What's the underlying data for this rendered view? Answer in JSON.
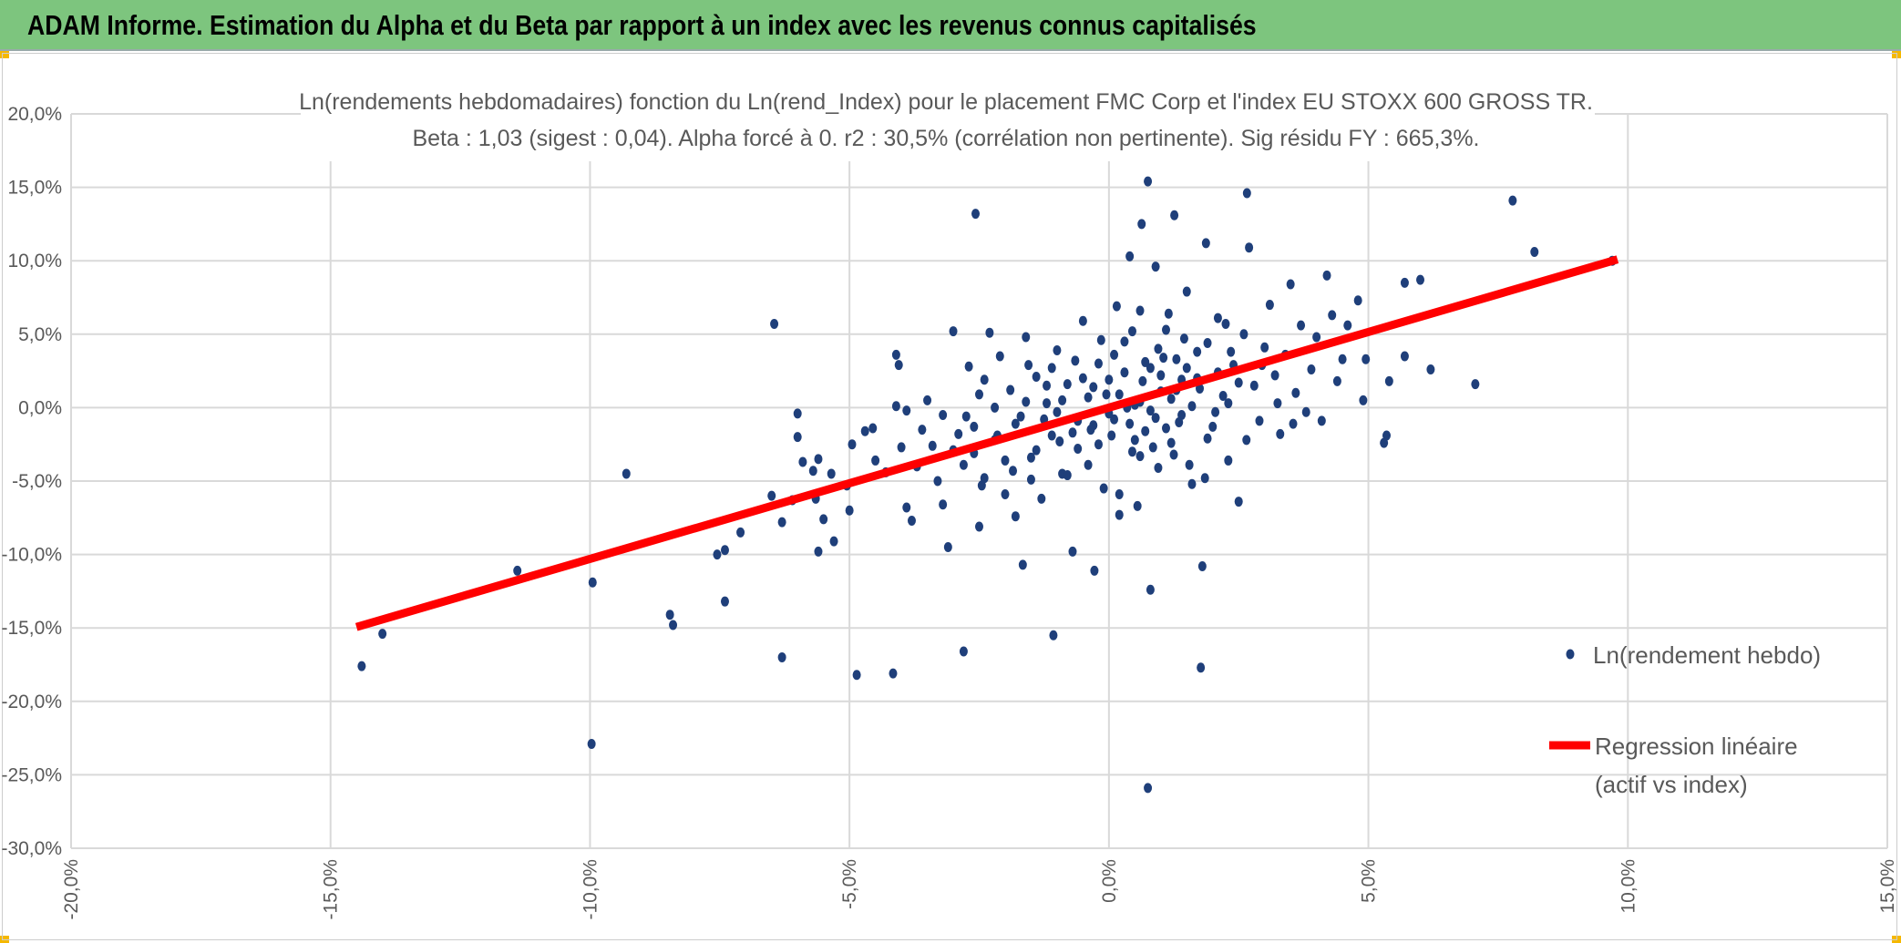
{
  "header": {
    "title": "ADAM Informe. Estimation du Alpha et du Beta par rapport à un index avec les revenus connus capitalisés"
  },
  "colors": {
    "header_bg": "#7dc57e",
    "points": "#1f3f7a",
    "regression": "#ff0000",
    "grid": "#d9d9d9"
  },
  "chart_data": {
    "type": "scatter",
    "title": "Ln(rendements hebdomadaires) fonction du Ln(rend_Index) pour le placement FMC Corp et l'index EU STOXX 600 GROSS TR.",
    "subtitle": "Beta : 1,03 (sigest : 0,04). Alpha forcé à 0. r2 : 30,5% (corrélation non pertinente). Sig résidu FY : 665,3%.",
    "xlabel": "",
    "ylabel": "",
    "xlim": [
      -20,
      15
    ],
    "ylim": [
      -30,
      20
    ],
    "x_ticks": [
      -20,
      -15,
      -10,
      -5,
      0,
      5,
      10,
      15
    ],
    "x_tick_labels": [
      "-20,0%",
      "-15,0%",
      "-10,0%",
      "-5,0%",
      "0,0%",
      "5,0%",
      "10,0%",
      "15,0%"
    ],
    "y_ticks": [
      20,
      15,
      10,
      5,
      0,
      -5,
      -10,
      -15,
      -20,
      -25,
      -30
    ],
    "y_tick_labels": [
      "20,0%",
      "15,0%",
      "10,0%",
      "5,0%",
      "0,0%",
      "-5,0%",
      "-10,0%",
      "-15,0%",
      "-20,0%",
      "-25,0%",
      "-30,0%"
    ],
    "grid": true,
    "legend_position": "right",
    "series": [
      {
        "name": "Ln(rendement hebdo)",
        "kind": "scatter",
        "points": [
          [
            -14.4,
            -17.6
          ],
          [
            -14.0,
            -15.4
          ],
          [
            -11.4,
            -11.1
          ],
          [
            -9.95,
            -11.9
          ],
          [
            -9.97,
            -22.9
          ],
          [
            -9.3,
            -4.5
          ],
          [
            -8.46,
            -14.1
          ],
          [
            -8.4,
            -14.8
          ],
          [
            -7.4,
            -13.2
          ],
          [
            -7.55,
            -10.0
          ],
          [
            -7.4,
            -9.7
          ],
          [
            -7.1,
            -8.5
          ],
          [
            -6.45,
            5.7
          ],
          [
            -6.3,
            -17.0
          ],
          [
            -6.0,
            -0.4
          ],
          [
            -6.0,
            -2.0
          ],
          [
            -6.5,
            -6.0
          ],
          [
            -6.1,
            -6.3
          ],
          [
            -6.3,
            -7.8
          ],
          [
            -5.9,
            -3.7
          ],
          [
            -5.7,
            -4.3
          ],
          [
            -5.6,
            -3.5
          ],
          [
            -5.35,
            -4.5
          ],
          [
            -5.65,
            -6.2
          ],
          [
            -5.5,
            -7.6
          ],
          [
            -5.6,
            -9.8
          ],
          [
            -5.3,
            -9.1
          ],
          [
            -5.05,
            -5.3
          ],
          [
            -5.0,
            -7.0
          ],
          [
            -4.95,
            -2.5
          ],
          [
            -4.86,
            -18.2
          ],
          [
            -4.7,
            -1.6
          ],
          [
            -4.55,
            -1.4
          ],
          [
            -4.5,
            -3.6
          ],
          [
            -4.3,
            -4.4
          ],
          [
            -4.16,
            -18.1
          ],
          [
            -4.1,
            3.6
          ],
          [
            -4.05,
            2.9
          ],
          [
            -4.1,
            0.1
          ],
          [
            -3.9,
            -0.2
          ],
          [
            -4.0,
            -2.7
          ],
          [
            -3.9,
            -6.8
          ],
          [
            -3.8,
            -7.7
          ],
          [
            -3.7,
            -4.0
          ],
          [
            -3.6,
            -1.5
          ],
          [
            -3.5,
            0.5
          ],
          [
            -3.4,
            -2.6
          ],
          [
            -3.3,
            -5.0
          ],
          [
            -3.2,
            -6.6
          ],
          [
            -3.1,
            -9.5
          ],
          [
            -3.0,
            5.2
          ],
          [
            -2.9,
            -1.8
          ],
          [
            -2.8,
            -16.6
          ],
          [
            -2.7,
            2.8
          ],
          [
            -2.6,
            -3.1
          ],
          [
            -2.57,
            13.2
          ],
          [
            -2.5,
            -8.1
          ],
          [
            -2.5,
            0.9
          ],
          [
            -2.4,
            -4.8
          ],
          [
            -2.3,
            5.1
          ],
          [
            -2.2,
            -2.2
          ],
          [
            -2.1,
            3.5
          ],
          [
            -2.0,
            -5.9
          ],
          [
            -1.9,
            1.2
          ],
          [
            -1.8,
            -7.4
          ],
          [
            -1.7,
            -0.6
          ],
          [
            -1.66,
            -10.7
          ],
          [
            -1.6,
            4.8
          ],
          [
            -1.5,
            -3.4
          ],
          [
            -1.4,
            2.1
          ],
          [
            -1.3,
            -6.2
          ],
          [
            -1.2,
            0.3
          ],
          [
            -1.1,
            -1.9
          ],
          [
            -1.07,
            -15.5
          ],
          [
            -1.0,
            3.9
          ],
          [
            -0.9,
            -4.5
          ],
          [
            -0.8,
            1.6
          ],
          [
            -0.7,
            -9.8
          ],
          [
            -0.6,
            -2.8
          ],
          [
            -0.5,
            5.9
          ],
          [
            -0.4,
            0.7
          ],
          [
            -0.3,
            -1.2
          ],
          [
            -0.28,
            -11.1
          ],
          [
            -0.2,
            3.0
          ],
          [
            -0.1,
            -5.5
          ],
          [
            0.0,
            1.9
          ],
          [
            0.1,
            -0.8
          ],
          [
            0.2,
            -7.3
          ],
          [
            0.3,
            4.5
          ],
          [
            0.4,
            10.3
          ],
          [
            0.45,
            -3.0
          ],
          [
            0.5,
            0.2
          ],
          [
            0.6,
            6.6
          ],
          [
            0.63,
            12.5
          ],
          [
            0.7,
            -1.6
          ],
          [
            0.75,
            15.4
          ],
          [
            0.75,
            -25.9
          ],
          [
            0.8,
            -12.4
          ],
          [
            0.8,
            2.7
          ],
          [
            0.9,
            9.6
          ],
          [
            0.95,
            -4.1
          ],
          [
            1.0,
            1.1
          ],
          [
            1.1,
            5.3
          ],
          [
            1.2,
            -2.4
          ],
          [
            1.26,
            13.1
          ],
          [
            1.3,
            3.3
          ],
          [
            1.4,
            -0.5
          ],
          [
            1.5,
            7.9
          ],
          [
            1.6,
            -5.2
          ],
          [
            1.7,
            2.0
          ],
          [
            1.77,
            -17.7
          ],
          [
            1.8,
            -10.8
          ],
          [
            1.87,
            11.2
          ],
          [
            1.9,
            4.4
          ],
          [
            2.0,
            -1.3
          ],
          [
            2.1,
            6.1
          ],
          [
            2.2,
            0.8
          ],
          [
            2.3,
            -3.6
          ],
          [
            2.4,
            2.9
          ],
          [
            2.5,
            -6.4
          ],
          [
            2.6,
            5.0
          ],
          [
            2.66,
            14.6
          ],
          [
            2.7,
            10.9
          ],
          [
            2.8,
            1.5
          ],
          [
            2.9,
            -0.9
          ],
          [
            3.0,
            4.1
          ],
          [
            3.1,
            7.0
          ],
          [
            3.2,
            2.2
          ],
          [
            3.3,
            -1.8
          ],
          [
            3.4,
            3.6
          ],
          [
            3.5,
            8.4
          ],
          [
            3.6,
            1.0
          ],
          [
            3.7,
            5.6
          ],
          [
            3.8,
            -0.3
          ],
          [
            3.9,
            2.6
          ],
          [
            4.0,
            4.8
          ],
          [
            4.1,
            -0.9
          ],
          [
            4.2,
            9.0
          ],
          [
            4.3,
            6.3
          ],
          [
            4.4,
            1.8
          ],
          [
            4.5,
            3.3
          ],
          [
            4.6,
            5.6
          ],
          [
            4.8,
            7.3
          ],
          [
            4.9,
            0.5
          ],
          [
            4.95,
            3.3
          ],
          [
            5.3,
            -2.4
          ],
          [
            5.35,
            -1.9
          ],
          [
            5.4,
            1.8
          ],
          [
            5.7,
            3.5
          ],
          [
            5.7,
            8.5
          ],
          [
            6.0,
            8.7
          ],
          [
            6.2,
            2.6
          ],
          [
            7.06,
            1.6
          ],
          [
            7.78,
            14.1
          ],
          [
            8.2,
            10.6
          ],
          [
            9.7,
            10.0
          ],
          [
            -0.9,
            0.5
          ],
          [
            -0.6,
            -0.9
          ],
          [
            -0.3,
            1.4
          ],
          [
            0.0,
            -0.4
          ],
          [
            0.2,
            0.9
          ],
          [
            0.4,
            -1.1
          ],
          [
            0.6,
            0.4
          ],
          [
            0.8,
            -0.2
          ],
          [
            1.0,
            2.2
          ],
          [
            1.2,
            0.6
          ],
          [
            1.4,
            1.9
          ],
          [
            1.6,
            0.1
          ],
          [
            0.3,
            2.4
          ],
          [
            0.5,
            -2.2
          ],
          [
            0.7,
            3.1
          ],
          [
            0.9,
            -0.7
          ],
          [
            1.1,
            -1.4
          ],
          [
            1.3,
            1.2
          ],
          [
            1.5,
            2.7
          ],
          [
            -0.2,
            -2.5
          ],
          [
            -0.5,
            2.0
          ],
          [
            -0.7,
            -1.7
          ],
          [
            -1.0,
            -0.3
          ],
          [
            -1.2,
            1.5
          ],
          [
            -1.4,
            -2.9
          ],
          [
            -1.6,
            0.4
          ],
          [
            -1.8,
            -1.1
          ],
          [
            -2.0,
            -3.6
          ],
          [
            -2.2,
            0.0
          ],
          [
            -0.4,
            -3.9
          ],
          [
            0.1,
            3.6
          ],
          [
            0.6,
            -3.3
          ],
          [
            1.7,
            3.8
          ],
          [
            1.9,
            -2.1
          ],
          [
            2.1,
            2.4
          ],
          [
            2.3,
            0.3
          ],
          [
            2.5,
            1.7
          ],
          [
            0.2,
            -5.9
          ],
          [
            0.45,
            5.2
          ],
          [
            0.95,
            4.0
          ],
          [
            1.25,
            -3.2
          ],
          [
            -0.15,
            4.6
          ],
          [
            -0.8,
            -4.6
          ],
          [
            -1.1,
            2.7
          ],
          [
            -1.5,
            -4.9
          ],
          [
            -2.6,
            -1.3
          ],
          [
            -2.8,
            -3.9
          ],
          [
            -3.0,
            -2.9
          ],
          [
            -3.2,
            -0.5
          ],
          [
            -2.4,
            1.9
          ],
          [
            0.05,
            -1.9
          ],
          [
            0.35,
            0.0
          ],
          [
            0.65,
            1.8
          ],
          [
            0.85,
            -2.7
          ],
          [
            1.05,
            3.4
          ],
          [
            1.35,
            -1.0
          ],
          [
            1.55,
            -3.9
          ],
          [
            1.75,
            1.3
          ],
          [
            2.05,
            -0.3
          ],
          [
            2.35,
            3.8
          ],
          [
            2.65,
            -2.2
          ],
          [
            2.95,
            2.9
          ],
          [
            3.25,
            0.3
          ],
          [
            3.55,
            -1.1
          ],
          [
            -0.05,
            0.9
          ],
          [
            -0.35,
            -1.5
          ],
          [
            -0.65,
            3.2
          ],
          [
            -0.95,
            -2.3
          ],
          [
            -1.25,
            -0.8
          ],
          [
            -1.55,
            2.9
          ],
          [
            -1.85,
            -4.3
          ],
          [
            -2.15,
            -1.9
          ],
          [
            -2.45,
            -5.3
          ],
          [
            -2.75,
            -0.6
          ],
          [
            0.15,
            6.9
          ],
          [
            0.55,
            -6.7
          ],
          [
            1.15,
            6.4
          ],
          [
            1.45,
            4.7
          ],
          [
            1.85,
            -4.8
          ],
          [
            2.25,
            5.7
          ]
        ]
      },
      {
        "name": "Regression linéaire (actif vs index)",
        "kind": "line",
        "legend_lines": [
          "Regression linéaire",
          "(actif vs index)"
        ],
        "beta": 1.03,
        "alpha": 0,
        "x_range": [
          -14.5,
          9.8
        ]
      }
    ]
  }
}
